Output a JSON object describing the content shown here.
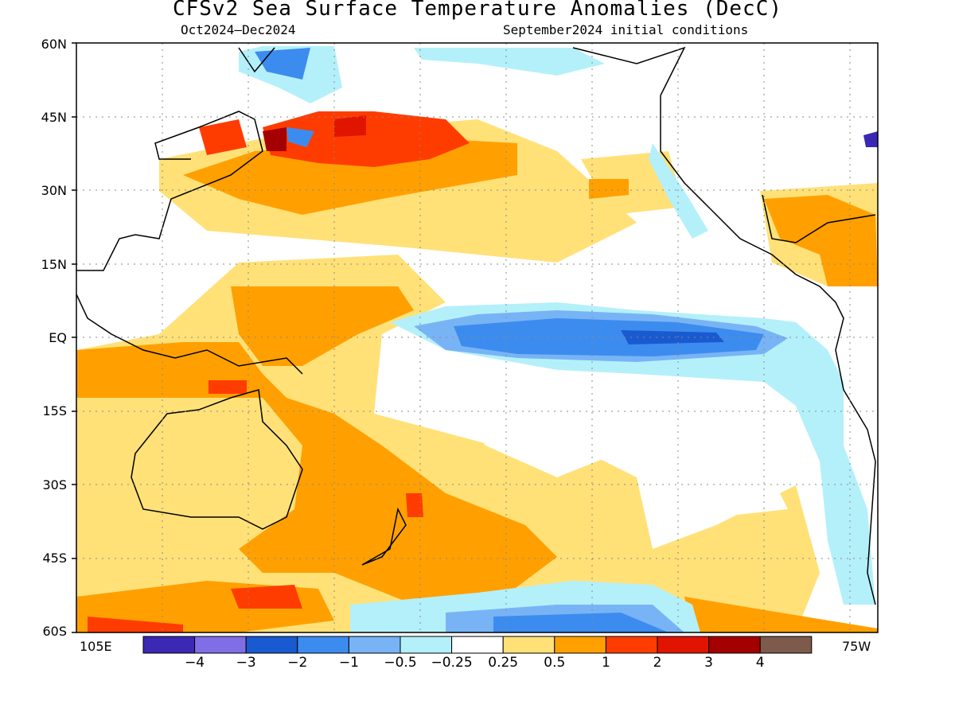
{
  "map": {
    "title": "CFSv2 Sea Surface Temperature Anomalies (DecC)",
    "subtitle_left": "Oct2024–Dec2024",
    "subtitle_right": "September2024 initial conditions",
    "lat_labels": [
      "60N",
      "45N",
      "30N",
      "15N",
      "EQ",
      "15S",
      "30S",
      "45S",
      "60S"
    ],
    "lon_left": "105E",
    "lon_right": "75W"
  },
  "colorbar": {
    "colors": [
      "#3b28b4",
      "#7f6ee6",
      "#1a5ad0",
      "#3c8cf0",
      "#78b4f5",
      "#b4f0fa",
      "#ffffff",
      "#ffe178",
      "#ffa000",
      "#ff3c00",
      "#e11400",
      "#a50000",
      "#7d5a4b"
    ],
    "labels": [
      "−4",
      "−3",
      "−2",
      "−1",
      "−0.5",
      "−0.25",
      "0.25",
      "0.5",
      "1",
      "2",
      "3",
      "4"
    ]
  }
}
